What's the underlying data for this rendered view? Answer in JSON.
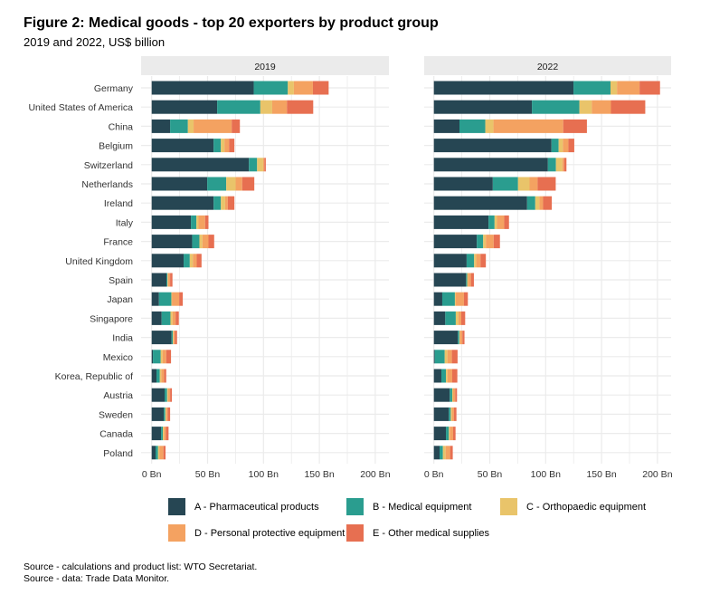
{
  "chart_data": {
    "type": "bar",
    "orientation": "horizontal",
    "stacked": true,
    "title": "Figure 2: Medical goods - top 20 exporters by product group",
    "subtitle": "2019 and 2022, US$ billion",
    "xlabel": "",
    "ylabel": "",
    "xlim": [
      0,
      212
    ],
    "x_ticks": [
      0,
      50,
      100,
      150,
      200
    ],
    "x_tick_labels": [
      "0 Bn",
      "50 Bn",
      "100 Bn",
      "150 Bn",
      "200 Bn"
    ],
    "grid": true,
    "legend_position": "bottom",
    "categories": [
      "Germany",
      "United States of America",
      "China",
      "Belgium",
      "Switzerland",
      "Netherlands",
      "Ireland",
      "Italy",
      "France",
      "United Kingdom",
      "Spain",
      "Japan",
      "Singapore",
      "India",
      "Mexico",
      "Korea, Republic of",
      "Austria",
      "Sweden",
      "Canada",
      "Poland"
    ],
    "series_info": [
      {
        "key": "A",
        "name": "A - Pharmaceutical products",
        "color": "#264653"
      },
      {
        "key": "B",
        "name": "B - Medical equipment",
        "color": "#2a9d8f"
      },
      {
        "key": "C",
        "name": "C - Orthopaedic equipment",
        "color": "#e9c46a"
      },
      {
        "key": "D",
        "name": "D - Personal protective equipment",
        "color": "#f4a261"
      },
      {
        "key": "E",
        "name": "E - Other medical supplies",
        "color": "#e76f51"
      }
    ],
    "panels": [
      {
        "label": "2019",
        "series": [
          {
            "name": "A - Pharmaceutical products",
            "values": [
              91.3,
              58.6,
              16.5,
              55.4,
              87.0,
              49.7,
              55.4,
              35.1,
              36.2,
              28.6,
              13.2,
              6.5,
              8.9,
              17.8,
              1.1,
              4.3,
              11.6,
              10.8,
              8.4,
              3.5
            ]
          },
          {
            "name": "B - Medical equipment",
            "values": [
              30.5,
              38.6,
              15.9,
              6.5,
              7.3,
              17.0,
              6.5,
              4.9,
              6.5,
              5.5,
              0.9,
              11.1,
              7.9,
              1.1,
              7.0,
              3.0,
              2.2,
              1.4,
              1.6,
              2.2
            ]
          },
          {
            "name": "C - Orthopaedic equipment",
            "values": [
              5.4,
              10.6,
              5.1,
              3.2,
              5.4,
              8.4,
              3.8,
              1.9,
              2.7,
              2.7,
              0.5,
              0.5,
              1.8,
              0.6,
              1.6,
              1.3,
              0.8,
              0.8,
              1.1,
              1.1
            ]
          },
          {
            "name": "D - Personal protective equipment",
            "values": [
              17.0,
              13.2,
              34.1,
              4.1,
              1.1,
              5.9,
              2.4,
              5.9,
              5.4,
              3.5,
              1.9,
              6.5,
              2.8,
              1.3,
              3.3,
              2.5,
              1.9,
              1.3,
              1.6,
              3.7
            ]
          },
          {
            "name": "E - Other medical supplies",
            "values": [
              14.1,
              23.5,
              7.3,
              4.8,
              1.3,
              10.8,
              5.9,
              3.0,
              5.1,
              4.3,
              2.1,
              3.2,
              2.9,
              1.9,
              4.3,
              1.9,
              1.6,
              2.2,
              2.4,
              1.9
            ]
          }
        ]
      },
      {
        "label": "2022",
        "series": [
          {
            "name": "A - Pharmaceutical products",
            "values": [
              124.9,
              87.7,
              22.9,
              105.2,
              102.0,
              52.7,
              83.4,
              48.9,
              38.4,
              29.3,
              28.8,
              7.5,
              10.2,
              21.5,
              0.8,
              6.7,
              14.2,
              13.4,
              10.8,
              5.1
            ]
          },
          {
            "name": "B - Medical equipment",
            "values": [
              33.1,
              42.5,
              23.1,
              6.4,
              7.2,
              22.6,
              7.3,
              5.4,
              5.7,
              6.7,
              1.0,
              11.3,
              9.4,
              1.3,
              8.9,
              4.1,
              2.2,
              1.7,
              2.6,
              3.0
            ]
          },
          {
            "name": "C - Orthopaedic equipment",
            "values": [
              5.8,
              11.1,
              7.3,
              3.8,
              5.7,
              10.3,
              3.7,
              2.2,
              2.4,
              1.9,
              0.8,
              0.8,
              2.4,
              0.6,
              2.4,
              1.3,
              0.8,
              1.0,
              0.8,
              2.4
            ]
          },
          {
            "name": "D - Personal protective equipment",
            "values": [
              20.2,
              17.1,
              62.4,
              4.9,
              1.6,
              7.2,
              3.3,
              6.4,
              7.0,
              3.8,
              2.5,
              7.3,
              2.5,
              2.1,
              4.0,
              4.3,
              1.9,
              1.9,
              3.0,
              4.0
            ]
          },
          {
            "name": "E - Other medical supplies",
            "values": [
              18.3,
              30.7,
              21.2,
              5.3,
              2.1,
              16.2,
              7.8,
              4.3,
              5.6,
              4.8,
              2.7,
              3.5,
              3.5,
              1.9,
              5.1,
              4.6,
              1.6,
              2.2,
              2.2,
              2.4
            ]
          }
        ]
      }
    ]
  },
  "legend": {
    "items": [
      {
        "label": "A - Pharmaceutical products",
        "color": "#264653"
      },
      {
        "label": "B - Medical equipment",
        "color": "#2a9d8f"
      },
      {
        "label": "C - Orthopaedic equipment",
        "color": "#e9c46a"
      },
      {
        "label": "D - Personal protective equipment",
        "color": "#f4a261"
      },
      {
        "label": "E - Other medical supplies",
        "color": "#e76f51"
      }
    ]
  },
  "source": {
    "line1": "Source - calculations  and product list: WTO  Secretariat.",
    "line2": "Source - data: Trade Data Monitor."
  }
}
